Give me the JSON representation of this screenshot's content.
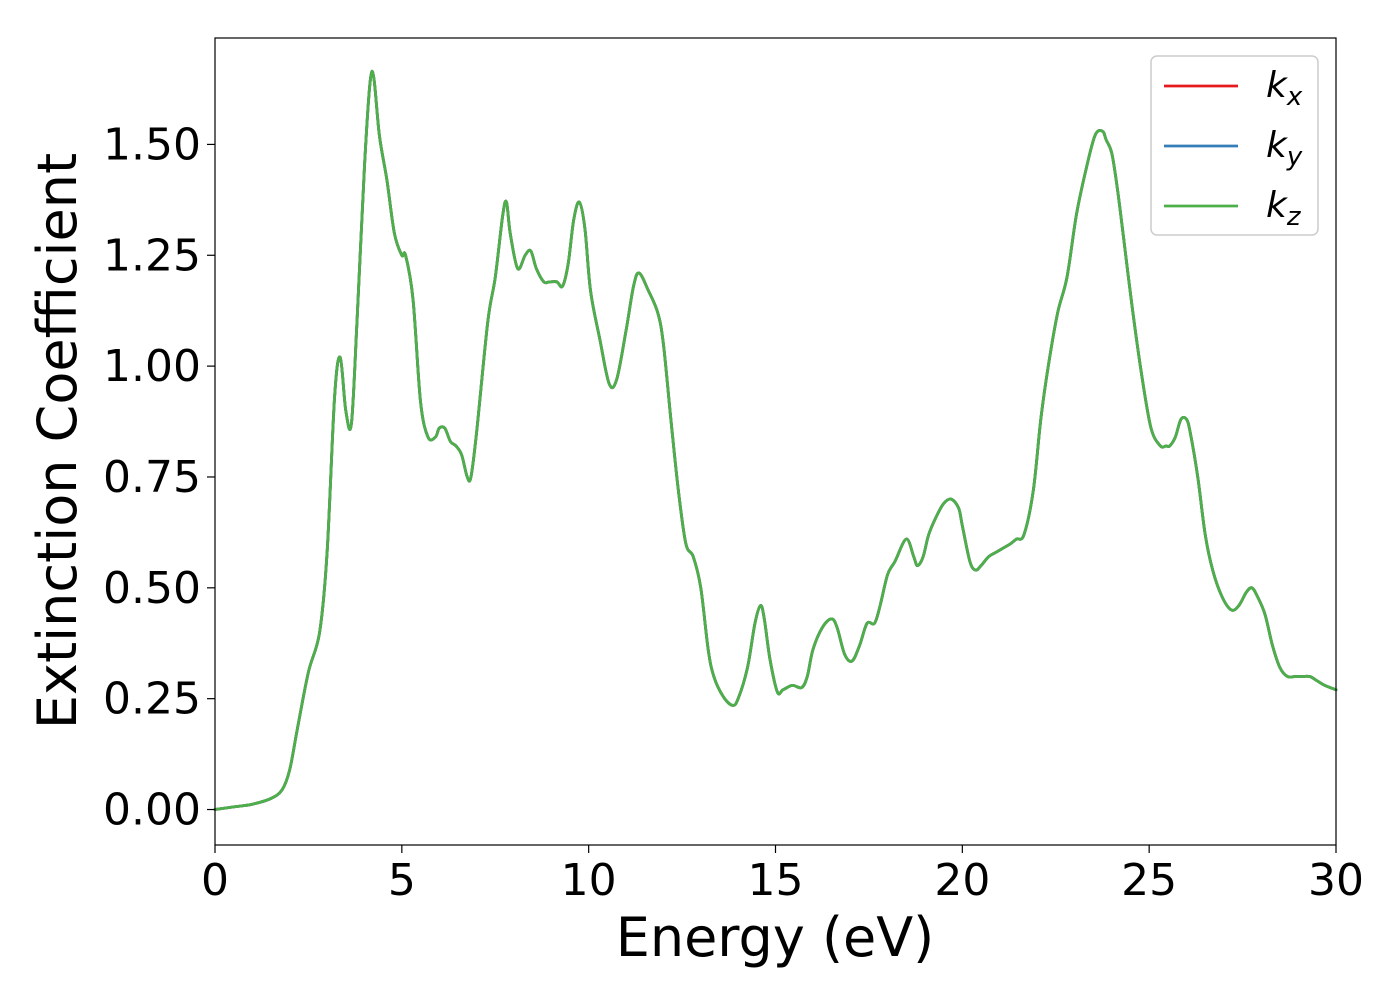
{
  "chart_data": {
    "type": "line",
    "xlabel": "Energy (eV)",
    "ylabel": "Extinction Coefficient",
    "xlim": [
      0,
      30
    ],
    "ylim": [
      -0.08,
      1.74
    ],
    "xticks": [
      0,
      5,
      10,
      15,
      20,
      25,
      30
    ],
    "xtick_labels": [
      "0",
      "5",
      "10",
      "15",
      "20",
      "25",
      "30"
    ],
    "yticks": [
      0.0,
      0.25,
      0.5,
      0.75,
      1.0,
      1.25,
      1.5
    ],
    "ytick_labels": [
      "0.00",
      "0.25",
      "0.50",
      "0.75",
      "1.00",
      "1.25",
      "1.50"
    ],
    "grid": false,
    "legend_position": "top-right",
    "x": [
      0.0,
      0.5,
      1.0,
      1.5,
      1.8,
      2.0,
      2.2,
      2.5,
      2.8,
      3.0,
      3.2,
      3.35,
      3.5,
      3.65,
      3.8,
      4.0,
      4.15,
      4.25,
      4.4,
      4.6,
      4.8,
      5.0,
      5.1,
      5.3,
      5.5,
      5.7,
      5.9,
      6.0,
      6.15,
      6.3,
      6.45,
      6.6,
      6.75,
      6.85,
      7.0,
      7.3,
      7.5,
      7.7,
      7.8,
      7.9,
      8.1,
      8.3,
      8.45,
      8.6,
      8.8,
      8.95,
      9.15,
      9.3,
      9.45,
      9.6,
      9.75,
      9.9,
      10.05,
      10.3,
      10.55,
      10.75,
      11.0,
      11.2,
      11.35,
      11.6,
      11.85,
      12.0,
      12.2,
      12.4,
      12.6,
      12.8,
      13.0,
      13.2,
      13.35,
      13.6,
      13.85,
      14.0,
      14.25,
      14.45,
      14.6,
      14.7,
      14.85,
      15.05,
      15.2,
      15.45,
      15.7,
      15.85,
      16.0,
      16.25,
      16.5,
      16.65,
      16.85,
      17.05,
      17.25,
      17.45,
      17.65,
      17.8,
      18.0,
      18.2,
      18.5,
      18.7,
      18.8,
      18.95,
      19.1,
      19.3,
      19.5,
      19.7,
      19.9,
      20.0,
      20.2,
      20.35,
      20.5,
      20.7,
      20.9,
      21.1,
      21.3,
      21.45,
      21.65,
      21.9,
      22.1,
      22.3,
      22.55,
      22.8,
      23.05,
      23.3,
      23.55,
      23.75,
      23.85,
      24.0,
      24.15,
      24.3,
      24.55,
      24.8,
      25.05,
      25.3,
      25.45,
      25.55,
      25.7,
      25.85,
      26.0,
      26.1,
      26.3,
      26.5,
      26.7,
      26.95,
      27.2,
      27.4,
      27.6,
      27.75,
      27.9,
      28.1,
      28.3,
      28.5,
      28.7,
      28.9,
      29.1,
      29.3,
      29.5,
      29.7,
      30.0
    ],
    "series": [
      {
        "name": "k_x",
        "color": "#e41a1c",
        "values": [
          0.0,
          0.006,
          0.012,
          0.025,
          0.045,
          0.09,
          0.18,
          0.31,
          0.4,
          0.58,
          0.93,
          1.02,
          0.9,
          0.87,
          1.1,
          1.45,
          1.64,
          1.65,
          1.52,
          1.42,
          1.3,
          1.25,
          1.25,
          1.15,
          0.92,
          0.84,
          0.84,
          0.86,
          0.86,
          0.83,
          0.82,
          0.8,
          0.75,
          0.75,
          0.85,
          1.1,
          1.2,
          1.34,
          1.37,
          1.3,
          1.22,
          1.25,
          1.26,
          1.22,
          1.19,
          1.19,
          1.19,
          1.18,
          1.23,
          1.33,
          1.37,
          1.31,
          1.17,
          1.06,
          0.96,
          0.97,
          1.08,
          1.18,
          1.21,
          1.17,
          1.12,
          1.05,
          0.88,
          0.72,
          0.6,
          0.57,
          0.5,
          0.36,
          0.3,
          0.255,
          0.235,
          0.25,
          0.32,
          0.42,
          0.46,
          0.43,
          0.34,
          0.265,
          0.27,
          0.28,
          0.275,
          0.3,
          0.36,
          0.41,
          0.43,
          0.41,
          0.35,
          0.335,
          0.37,
          0.42,
          0.42,
          0.46,
          0.53,
          0.56,
          0.61,
          0.57,
          0.55,
          0.57,
          0.62,
          0.66,
          0.69,
          0.7,
          0.68,
          0.64,
          0.56,
          0.54,
          0.55,
          0.57,
          0.58,
          0.59,
          0.6,
          0.61,
          0.62,
          0.72,
          0.88,
          1.0,
          1.12,
          1.2,
          1.34,
          1.44,
          1.52,
          1.53,
          1.51,
          1.48,
          1.4,
          1.3,
          1.13,
          0.98,
          0.86,
          0.82,
          0.82,
          0.82,
          0.84,
          0.88,
          0.88,
          0.85,
          0.75,
          0.62,
          0.54,
          0.48,
          0.45,
          0.46,
          0.49,
          0.5,
          0.48,
          0.44,
          0.37,
          0.32,
          0.3,
          0.3,
          0.3,
          0.3,
          0.29,
          0.28,
          0.27
        ]
      },
      {
        "name": "k_y",
        "color": "#377eb8",
        "values": [
          0.0,
          0.006,
          0.012,
          0.025,
          0.045,
          0.09,
          0.18,
          0.31,
          0.4,
          0.58,
          0.93,
          1.02,
          0.9,
          0.87,
          1.1,
          1.45,
          1.64,
          1.65,
          1.52,
          1.42,
          1.3,
          1.25,
          1.25,
          1.15,
          0.92,
          0.84,
          0.84,
          0.86,
          0.86,
          0.83,
          0.82,
          0.8,
          0.75,
          0.75,
          0.85,
          1.1,
          1.2,
          1.34,
          1.37,
          1.3,
          1.22,
          1.25,
          1.26,
          1.22,
          1.19,
          1.19,
          1.19,
          1.18,
          1.23,
          1.33,
          1.37,
          1.31,
          1.17,
          1.06,
          0.96,
          0.97,
          1.08,
          1.18,
          1.21,
          1.17,
          1.12,
          1.05,
          0.88,
          0.72,
          0.6,
          0.57,
          0.5,
          0.36,
          0.3,
          0.255,
          0.235,
          0.25,
          0.32,
          0.42,
          0.46,
          0.43,
          0.34,
          0.265,
          0.27,
          0.28,
          0.275,
          0.3,
          0.36,
          0.41,
          0.43,
          0.41,
          0.35,
          0.335,
          0.37,
          0.42,
          0.42,
          0.46,
          0.53,
          0.56,
          0.61,
          0.57,
          0.55,
          0.57,
          0.62,
          0.66,
          0.69,
          0.7,
          0.68,
          0.64,
          0.56,
          0.54,
          0.55,
          0.57,
          0.58,
          0.59,
          0.6,
          0.61,
          0.62,
          0.72,
          0.88,
          1.0,
          1.12,
          1.2,
          1.34,
          1.44,
          1.52,
          1.53,
          1.51,
          1.48,
          1.4,
          1.3,
          1.13,
          0.98,
          0.86,
          0.82,
          0.82,
          0.82,
          0.84,
          0.88,
          0.88,
          0.85,
          0.75,
          0.62,
          0.54,
          0.48,
          0.45,
          0.46,
          0.49,
          0.5,
          0.48,
          0.44,
          0.37,
          0.32,
          0.3,
          0.3,
          0.3,
          0.3,
          0.29,
          0.28,
          0.27
        ]
      },
      {
        "name": "k_z",
        "color": "#4daf4a",
        "values": [
          0.0,
          0.006,
          0.012,
          0.025,
          0.045,
          0.09,
          0.18,
          0.31,
          0.4,
          0.58,
          0.93,
          1.02,
          0.9,
          0.87,
          1.1,
          1.45,
          1.64,
          1.65,
          1.52,
          1.42,
          1.3,
          1.25,
          1.25,
          1.15,
          0.92,
          0.84,
          0.84,
          0.86,
          0.86,
          0.83,
          0.82,
          0.8,
          0.75,
          0.75,
          0.85,
          1.1,
          1.2,
          1.34,
          1.37,
          1.3,
          1.22,
          1.25,
          1.26,
          1.22,
          1.19,
          1.19,
          1.19,
          1.18,
          1.23,
          1.33,
          1.37,
          1.31,
          1.17,
          1.06,
          0.96,
          0.97,
          1.08,
          1.18,
          1.21,
          1.17,
          1.12,
          1.05,
          0.88,
          0.72,
          0.6,
          0.57,
          0.5,
          0.36,
          0.3,
          0.255,
          0.235,
          0.25,
          0.32,
          0.42,
          0.46,
          0.43,
          0.34,
          0.265,
          0.27,
          0.28,
          0.275,
          0.3,
          0.36,
          0.41,
          0.43,
          0.41,
          0.35,
          0.335,
          0.37,
          0.42,
          0.42,
          0.46,
          0.53,
          0.56,
          0.61,
          0.57,
          0.55,
          0.57,
          0.62,
          0.66,
          0.69,
          0.7,
          0.68,
          0.64,
          0.56,
          0.54,
          0.55,
          0.57,
          0.58,
          0.59,
          0.6,
          0.61,
          0.62,
          0.72,
          0.88,
          1.0,
          1.12,
          1.2,
          1.34,
          1.44,
          1.52,
          1.53,
          1.51,
          1.48,
          1.4,
          1.3,
          1.13,
          0.98,
          0.86,
          0.82,
          0.82,
          0.82,
          0.84,
          0.88,
          0.88,
          0.85,
          0.75,
          0.62,
          0.54,
          0.48,
          0.45,
          0.46,
          0.49,
          0.5,
          0.48,
          0.44,
          0.37,
          0.32,
          0.3,
          0.3,
          0.3,
          0.3,
          0.29,
          0.28,
          0.27
        ]
      }
    ],
    "legend": [
      {
        "main": "k",
        "sub": "x",
        "color": "#e41a1c"
      },
      {
        "main": "k",
        "sub": "y",
        "color": "#377eb8"
      },
      {
        "main": "k",
        "sub": "z",
        "color": "#4daf4a"
      }
    ]
  }
}
